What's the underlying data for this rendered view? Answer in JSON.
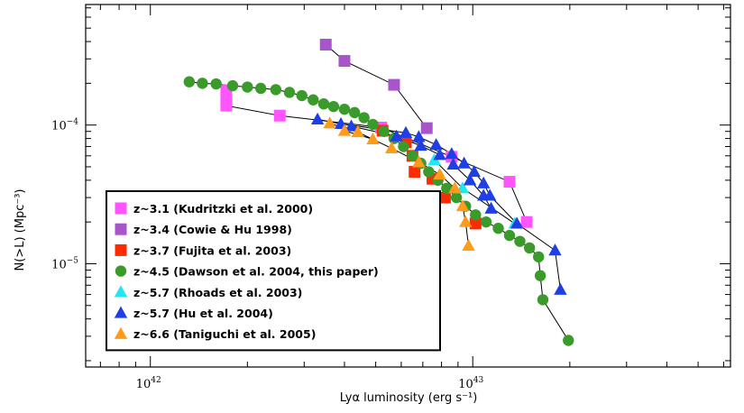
{
  "chart_data": {
    "type": "scatter",
    "xlabel": "Lyα luminosity (erg s⁻¹)",
    "ylabel": "N(>L) (Mpc⁻³)",
    "x_scale": "log",
    "y_scale": "log",
    "xlim": [
      6.3e+41,
      6.3e+43
    ],
    "ylim": [
      1.8e-06,
      0.00074
    ],
    "x_ticks": [
      {
        "value": 1e+42,
        "base": "10",
        "exp": "42"
      },
      {
        "value": 1e+43,
        "base": "10",
        "exp": "43"
      }
    ],
    "y_ticks": [
      {
        "value": 0.0001,
        "base": "10",
        "exp": "−4"
      },
      {
        "value": 1e-05,
        "base": "10",
        "exp": "−5"
      }
    ],
    "grid": false,
    "legend_position": "bottom-left",
    "series": [
      {
        "name": "z~3.1 (Kudritzki et al. 2000)",
        "marker": "square",
        "color": "#ff55ff",
        "connected": true,
        "lines": [
          [
            [
              1.72e+42,
              0.000178
            ],
            [
              1.72e+42,
              0.000157
            ],
            [
              1.72e+42,
              0.000138
            ],
            [
              2.52e+42,
              0.000117
            ],
            [
              5.2e+42,
              9.6e-05
            ],
            [
              8.6e+42,
              5.9e-05
            ],
            [
              1.3e+43,
              3.9e-05
            ],
            [
              1.47e+43,
              2e-05
            ]
          ]
        ]
      },
      {
        "name": "z~3.4 (Cowie & Hu 1998)",
        "marker": "square",
        "color": "#a855cc",
        "connected": true,
        "lines": [
          [
            [
              3.5e+42,
              0.00038
            ],
            [
              4e+42,
              0.00029
            ],
            [
              5.7e+42,
              0.000195
            ],
            [
              7.2e+42,
              9.5e-05
            ]
          ]
        ]
      },
      {
        "name": "z~3.7 (Fujita et al. 2003)",
        "marker": "square",
        "color": "#ff2a00",
        "connected": false,
        "lines": [
          [
            [
              5.25e+42,
              9.1e-05
            ],
            [
              6.2e+42,
              7.5e-05
            ],
            [
              6.5e+42,
              6e-05
            ],
            [
              6.6e+42,
              4.6e-05
            ],
            [
              7.5e+42,
              4.1e-05
            ],
            [
              8.2e+42,
              3e-05
            ],
            [
              1.02e+43,
              1.95e-05
            ]
          ]
        ]
      },
      {
        "name": "z~4.5 (Dawson et al. 2004, this paper)",
        "marker": "circle",
        "color": "#3a9a2a",
        "connected": true,
        "lines": [
          [
            [
              1.32e+42,
              0.000205
            ],
            [
              1.45e+42,
              0.0002
            ],
            [
              1.6e+42,
              0.000198
            ],
            [
              1.8e+42,
              0.000192
            ],
            [
              2e+42,
              0.000188
            ],
            [
              2.2e+42,
              0.000184
            ],
            [
              2.45e+42,
              0.00018
            ],
            [
              2.7e+42,
              0.000172
            ],
            [
              2.95e+42,
              0.000163
            ],
            [
              3.2e+42,
              0.000152
            ],
            [
              3.45e+42,
              0.000142
            ],
            [
              3.7e+42,
              0.000136
            ],
            [
              4e+42,
              0.00013
            ],
            [
              4.3e+42,
              0.000123
            ],
            [
              4.6e+42,
              0.000113
            ],
            [
              4.9e+42,
              0.000101
            ],
            [
              5.3e+42,
              9e-05
            ],
            [
              5.7e+42,
              8e-05
            ],
            [
              6.1e+42,
              7e-05
            ],
            [
              6.5e+42,
              6e-05
            ],
            [
              6.9e+42,
              5.3e-05
            ],
            [
              7.3e+42,
              4.6e-05
            ],
            [
              7.8e+42,
              4e-05
            ],
            [
              8.3e+42,
              3.5e-05
            ],
            [
              8.9e+42,
              3e-05
            ],
            [
              9.5e+42,
              2.6e-05
            ],
            [
              1.02e+43,
              2.25e-05
            ],
            [
              1.1e+43,
              2e-05
            ],
            [
              1.2e+43,
              1.8e-05
            ],
            [
              1.3e+43,
              1.6e-05
            ],
            [
              1.4e+43,
              1.45e-05
            ],
            [
              1.5e+43,
              1.3e-05
            ],
            [
              1.6e+43,
              1.12e-05
            ],
            [
              1.62e+43,
              8.2e-06
            ],
            [
              1.65e+43,
              5.5e-06
            ],
            [
              1.98e+43,
              2.8e-06
            ]
          ]
        ]
      },
      {
        "name": "z~5.7 (Rhoads et al. 2003)",
        "marker": "triangle",
        "color": "#22e6f0",
        "connected": true,
        "lines": [
          [
            [
              7.6e+42,
              5.6e-05
            ],
            [
              9.3e+42,
              3.5e-05
            ],
            [
              1.35e+43,
              1.95e-05
            ]
          ]
        ]
      },
      {
        "name": "z~5.7 (Hu et al. 2004)",
        "marker": "triangle",
        "color": "#1f3fe6",
        "connected": true,
        "lines": [
          [
            [
              3.3e+42,
              0.00011
            ],
            [
              3.9e+42,
              0.000102
            ],
            [
              6.2e+42,
              8.8e-05
            ],
            [
              6.8e+42,
              8.2e-05
            ],
            [
              7.7e+42,
              7.2e-05
            ],
            [
              8.6e+42,
              6.2e-05
            ],
            [
              9.4e+42,
              5.3e-05
            ],
            [
              1.01e+43,
              4.6e-05
            ],
            [
              1.08e+43,
              3.8e-05
            ],
            [
              1.13e+43,
              3.1e-05
            ],
            [
              1.37e+43,
              1.95e-05
            ],
            [
              1.8e+43,
              1.25e-05
            ],
            [
              1.87e+43,
              6.5e-06
            ]
          ],
          [
            [
              4.2e+42,
              9.8e-05
            ],
            [
              5.8e+42,
              8.3e-05
            ],
            [
              6.9e+42,
              7.1e-05
            ],
            [
              7.9e+42,
              6.1e-05
            ],
            [
              8.7e+42,
              5.2e-05
            ],
            [
              9.8e+42,
              4e-05
            ],
            [
              1.08e+43,
              3.1e-05
            ],
            [
              1.14e+43,
              2.5e-05
            ]
          ]
        ]
      },
      {
        "name": "z~6.6 (Taniguchi et al. 2005)",
        "marker": "triangle",
        "color": "#ff9a1a",
        "connected": true,
        "lines": [
          [
            [
              3.6e+42,
              0.000103
            ],
            [
              4.4e+42,
              8.9e-05
            ],
            [
              5.6e+42,
              6.8e-05
            ],
            [
              6.8e+42,
              5.4e-05
            ],
            [
              7.9e+42,
              4.4e-05
            ],
            [
              8.8e+42,
              3.5e-05
            ],
            [
              9.3e+42,
              2.6e-05
            ],
            [
              9.5e+42,
              2e-05
            ],
            [
              9.7e+42,
              1.35e-05
            ]
          ],
          [
            [
              4e+42,
              9.1e-05
            ],
            [
              4.9e+42,
              7.9e-05
            ]
          ]
        ]
      }
    ]
  }
}
